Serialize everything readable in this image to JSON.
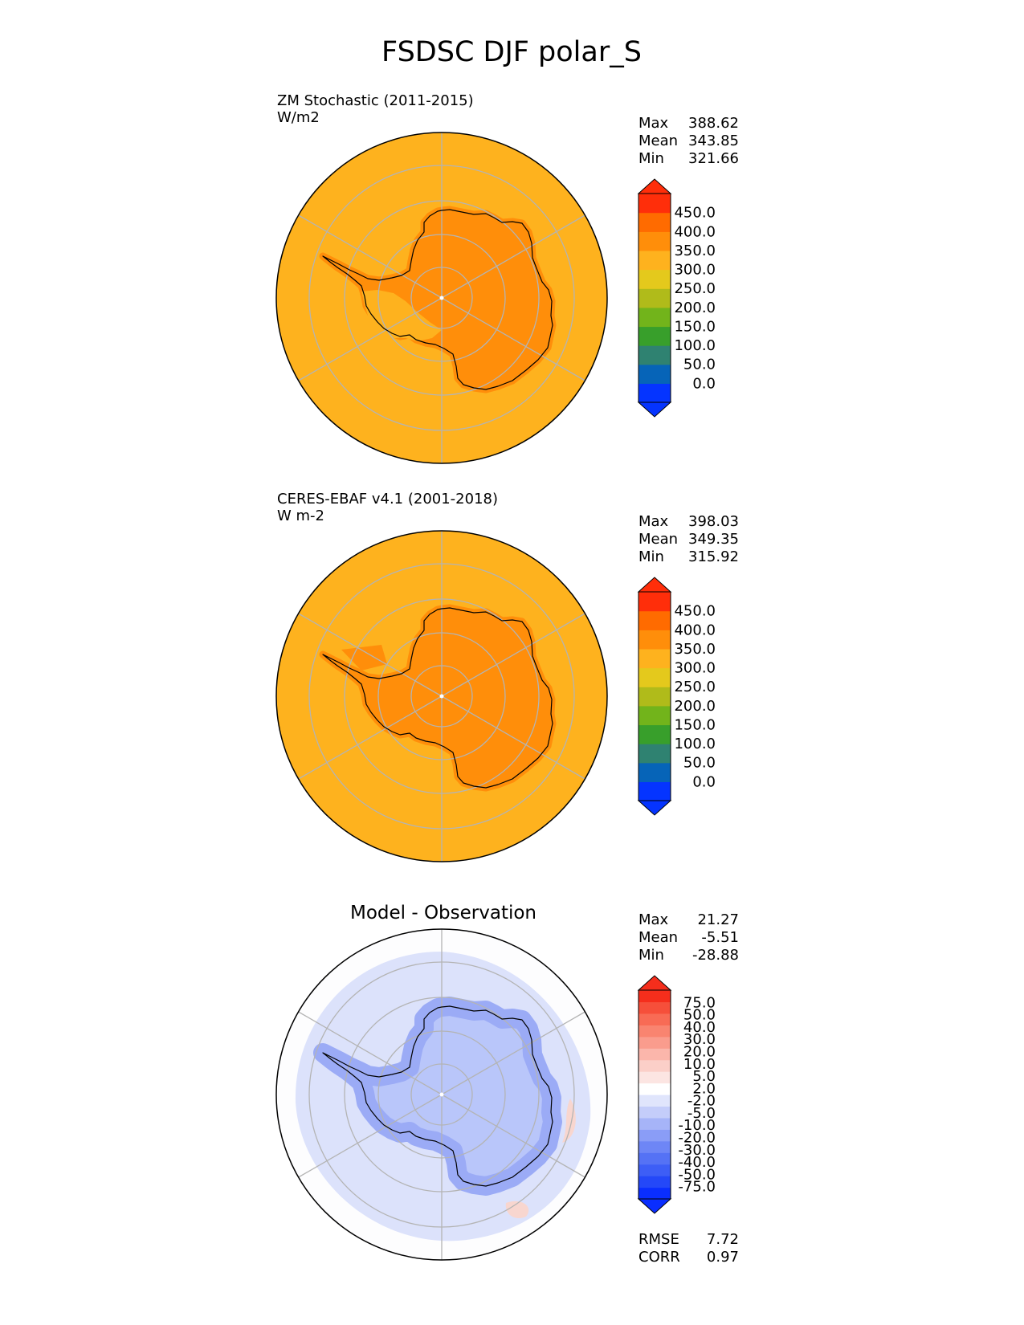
{
  "title": "FSDSC DJF polar_S",
  "colors": {
    "ocean_test": "#FEB21E",
    "land_test": "#FF8E0A",
    "ocean_ref": "#FEB21E",
    "land_ref": "#FF8E0A",
    "diff_background": "#FDFDFE",
    "diff_ocean": "#DCE2FB",
    "diff_land": "#B9C6FA",
    "diff_coast": "#9BABF6",
    "grid": "#B4B4B4",
    "coast": "#000000"
  },
  "chart_data": [
    {
      "type": "heatmap",
      "projection": "south-polar-stereographic",
      "title": "",
      "left_title": "ZM Stochastic (2011-2015)",
      "units": "W/m2",
      "stats": [
        {
          "label": "Max",
          "value": "388.62"
        },
        {
          "label": "Mean",
          "value": "343.85"
        },
        {
          "label": "Min",
          "value": "321.66"
        }
      ],
      "colorbar": {
        "ticks": [
          "450.0",
          "400.0",
          "350.0",
          "300.0",
          "250.0",
          "200.0",
          "150.0",
          "100.0",
          "50.0",
          "0.0"
        ],
        "colors": [
          "#0534FF",
          "#0664B8",
          "#2F8271",
          "#389F2B",
          "#72B41B",
          "#B0BB1A",
          "#E4C91C",
          "#FEB21E",
          "#FF8E0A",
          "#FF6B00",
          "#FF2E0A"
        ],
        "extend": "both",
        "over_color": "#FF2E0A",
        "under_color": "#0534FF"
      }
    },
    {
      "type": "heatmap",
      "projection": "south-polar-stereographic",
      "title": "",
      "left_title": "CERES-EBAF v4.1 (2001-2018)",
      "units": "W m-2",
      "stats": [
        {
          "label": "Max",
          "value": "398.03"
        },
        {
          "label": "Mean",
          "value": "349.35"
        },
        {
          "label": "Min",
          "value": "315.92"
        }
      ],
      "colorbar": {
        "ticks": [
          "450.0",
          "400.0",
          "350.0",
          "300.0",
          "250.0",
          "200.0",
          "150.0",
          "100.0",
          "50.0",
          "0.0"
        ],
        "colors": [
          "#0534FF",
          "#0664B8",
          "#2F8271",
          "#389F2B",
          "#72B41B",
          "#B0BB1A",
          "#E4C91C",
          "#FEB21E",
          "#FF8E0A",
          "#FF6B00",
          "#FF2E0A"
        ],
        "extend": "both",
        "over_color": "#FF2E0A",
        "under_color": "#0534FF"
      }
    },
    {
      "type": "heatmap",
      "projection": "south-polar-stereographic",
      "title": "Model - Observation",
      "left_title": "",
      "units": "",
      "stats": [
        {
          "label": "Max",
          "value": "21.27"
        },
        {
          "label": "Mean",
          "value": "-5.51"
        },
        {
          "label": "Min",
          "value": "-28.88"
        }
      ],
      "extra_stats": [
        {
          "label": "RMSE",
          "value": "7.72"
        },
        {
          "label": "CORR",
          "value": "0.97"
        }
      ],
      "colorbar": {
        "ticks": [
          "75.0",
          "50.0",
          "40.0",
          "30.0",
          "20.0",
          "10.0",
          "5.0",
          "2.0",
          "-2.0",
          "-5.0",
          "-10.0",
          "-20.0",
          "-30.0",
          "-40.0",
          "-50.0",
          "-75.0"
        ],
        "colors": [
          "#0A2EFF",
          "#2448F8",
          "#3D5EF6",
          "#5572F5",
          "#6E86F6",
          "#8A9DF7",
          "#A6B4F8",
          "#C4CDFA",
          "#E0E5FC",
          "#FFFFFF",
          "#FCE5E2",
          "#FBCFC8",
          "#FBB6AB",
          "#FA9C8D",
          "#F98470",
          "#F86B55",
          "#F64F3A",
          "#F52E1C"
        ],
        "extend": "both",
        "over_color": "#F52E1C",
        "under_color": "#0A2EFF"
      }
    }
  ]
}
